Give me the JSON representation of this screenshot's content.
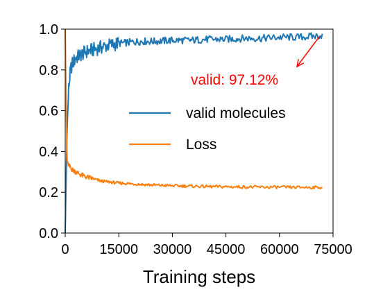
{
  "chart_data": {
    "type": "line",
    "title": "",
    "xlabel": "Training steps",
    "ylabel": "",
    "xlim": [
      0,
      75000
    ],
    "ylim": [
      0.0,
      1.0
    ],
    "xticks": [
      0,
      15000,
      30000,
      45000,
      60000,
      75000
    ],
    "xtick_labels": [
      "0",
      "15000",
      "30000",
      "45000",
      "60000",
      "75000"
    ],
    "yticks": [
      0.0,
      0.2,
      0.4,
      0.6,
      0.8,
      1.0
    ],
    "ytick_labels": [
      "0.0",
      "0.2",
      "0.4",
      "0.6",
      "0.8",
      "1.0"
    ],
    "grid": false,
    "legend_position": "center-right",
    "series": [
      {
        "name": "valid molecules",
        "color": "#1f77b4",
        "x": [
          0,
          500,
          1000,
          1500,
          2000,
          3000,
          4000,
          5000,
          6000,
          8000,
          10000,
          12000,
          15000,
          18000,
          21000,
          25000,
          30000,
          35000,
          40000,
          45000,
          50000,
          55000,
          60000,
          65000,
          70000,
          72000
        ],
        "y": [
          0.0,
          0.5,
          0.72,
          0.8,
          0.83,
          0.86,
          0.87,
          0.88,
          0.89,
          0.9,
          0.91,
          0.92,
          0.93,
          0.935,
          0.94,
          0.94,
          0.945,
          0.945,
          0.95,
          0.95,
          0.955,
          0.955,
          0.96,
          0.96,
          0.965,
          0.97
        ]
      },
      {
        "name": "Loss",
        "color": "#ff7f0e",
        "x": [
          0,
          300,
          500,
          1000,
          2000,
          3000,
          5000,
          8000,
          10000,
          15000,
          20000,
          25000,
          30000,
          35000,
          40000,
          45000,
          50000,
          55000,
          60000,
          65000,
          70000,
          72000
        ],
        "y": [
          1.0,
          0.6,
          0.36,
          0.33,
          0.31,
          0.3,
          0.28,
          0.265,
          0.255,
          0.245,
          0.24,
          0.235,
          0.232,
          0.23,
          0.228,
          0.227,
          0.226,
          0.225,
          0.225,
          0.224,
          0.224,
          0.224
        ]
      }
    ],
    "annotations": [
      {
        "text": "valid: 97.12%",
        "color": "#ff0000",
        "x": 72000,
        "y": 0.9712
      }
    ]
  }
}
